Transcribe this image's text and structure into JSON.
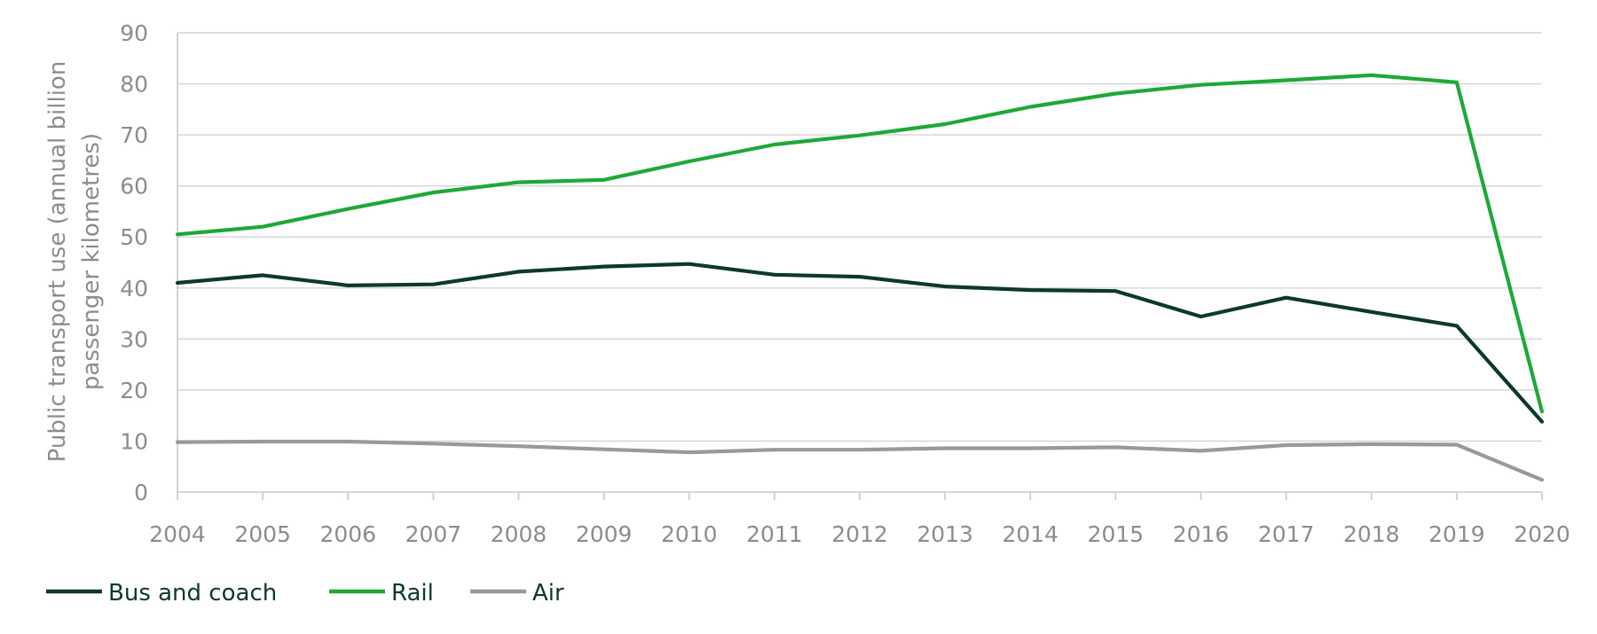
{
  "chart_data": {
    "type": "line",
    "title": "",
    "xlabel": "",
    "ylabel_lines": [
      "Public transport use (annual billion",
      "passenger kilometres)"
    ],
    "ylim": [
      0,
      90
    ],
    "yticks": [
      0,
      10,
      20,
      30,
      40,
      50,
      60,
      70,
      80,
      90
    ],
    "x": [
      "2004",
      "2005",
      "2006",
      "2007",
      "2008",
      "2009",
      "2010",
      "2011",
      "2012",
      "2013",
      "2014",
      "2015",
      "2016",
      "2017",
      "2018",
      "2019",
      "2020"
    ],
    "grid": "horizontal",
    "legend_position": "bottom-left",
    "series": [
      {
        "name": "Bus and coach",
        "color": "#0b3a2c",
        "values": [
          41.0,
          42.5,
          40.5,
          40.7,
          43.2,
          44.2,
          44.7,
          42.6,
          42.2,
          40.3,
          39.6,
          39.4,
          34.4,
          38.1,
          35.3,
          32.6,
          13.8
        ]
      },
      {
        "name": "Rail",
        "color": "#1ea837",
        "values": [
          50.5,
          52.0,
          55.5,
          58.7,
          60.7,
          61.2,
          64.8,
          68.1,
          69.9,
          72.1,
          75.5,
          78.1,
          79.8,
          80.7,
          81.7,
          80.3,
          15.8
        ]
      },
      {
        "name": "Air",
        "color": "#999999",
        "values": [
          9.8,
          9.9,
          9.9,
          9.5,
          9.0,
          8.4,
          7.8,
          8.3,
          8.3,
          8.6,
          8.6,
          8.8,
          8.1,
          9.2,
          9.4,
          9.3,
          2.4
        ]
      }
    ]
  }
}
